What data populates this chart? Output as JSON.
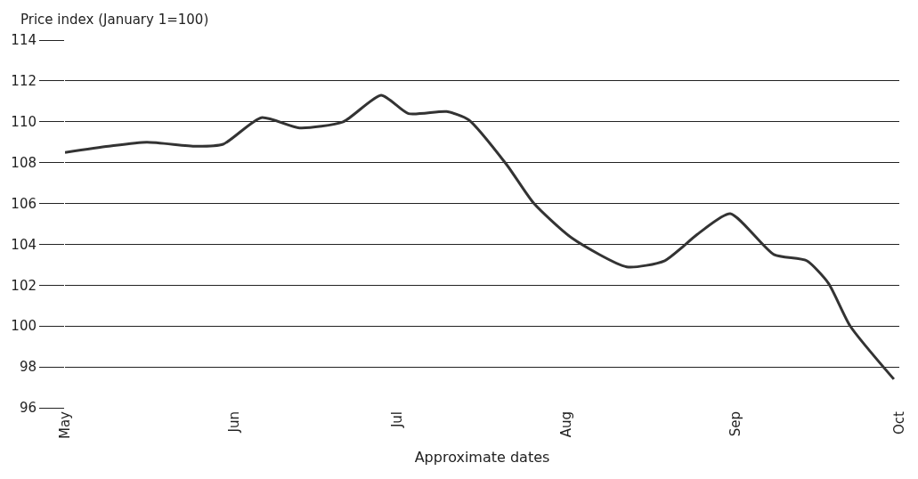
{
  "chart_data": {
    "type": "line",
    "ylabel": "Price index (January 1=100)",
    "xlabel": "Approximate dates",
    "x": [
      "--05-01",
      "--05-09",
      "--05-16",
      "--05-25",
      "--05-30",
      "--06-06",
      "--06-13",
      "--06-21",
      "--06-28",
      "--07-03",
      "--07-10",
      "--07-14",
      "--07-21",
      "--07-26",
      "--08-02",
      "--08-12",
      "--08-19",
      "--08-25",
      "--08-31",
      "--09-08",
      "--09-14",
      "--09-18",
      "--09-22",
      "--09-30"
    ],
    "series": [
      {
        "color": "#333333",
        "values": [
          108.5,
          108.8,
          109.0,
          108.8,
          108.9,
          110.2,
          109.7,
          110.0,
          111.3,
          110.4,
          110.5,
          110.1,
          107.9,
          106.0,
          104.3,
          102.9,
          103.2,
          104.5,
          105.5,
          103.5,
          103.2,
          102.1,
          100.0,
          97.4
        ]
      }
    ],
    "xlim": [
      "--05-01",
      "--10-01"
    ],
    "xticks": [
      {
        "value": "--05-01",
        "label": "May"
      },
      {
        "value": "--06-01",
        "label": "Jun"
      },
      {
        "value": "--07-01",
        "label": "Jul"
      },
      {
        "value": "--08-01",
        "label": "Aug"
      },
      {
        "value": "--09-01",
        "label": "Sep"
      },
      {
        "value": "--10-01",
        "label": "Oct"
      }
    ],
    "ylim": [
      96,
      114
    ],
    "yticks": [
      96,
      98,
      100,
      102,
      104,
      106,
      108,
      110,
      112,
      114
    ],
    "grid": "y",
    "line_style": "solid",
    "marker": "none"
  }
}
